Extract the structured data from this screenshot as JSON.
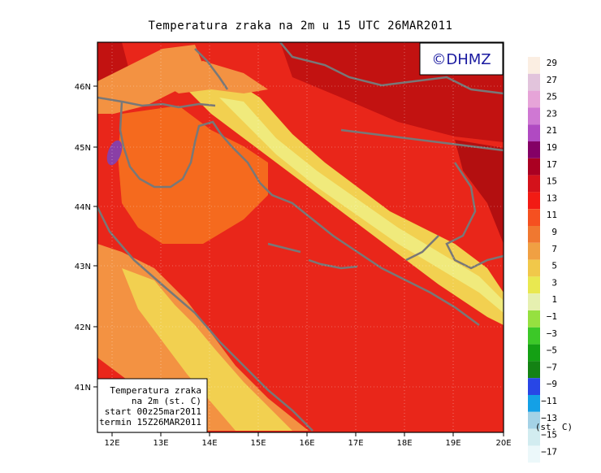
{
  "title": "Temperatura zraka na 2m u 15 UTC 26MAR2011",
  "logo_text": "©DHMZ",
  "lat_labels": [
    "46N",
    "45N",
    "44N",
    "43N",
    "42N",
    "41N"
  ],
  "lon_labels": [
    "12E",
    "13E",
    "14E",
    "15E",
    "16E",
    "17E",
    "18E",
    "19E",
    "20E"
  ],
  "info_box": {
    "line1": "Temperatura zraka",
    "line2": "na 2m (st. C)",
    "line3": "start 00z25mar2011",
    "line4": "termin 15Z26MAR2011"
  },
  "legend": {
    "unit": "(st. C)",
    "labels": [
      "29",
      "27",
      "25",
      "23",
      "21",
      "19",
      "17",
      "15",
      "13",
      "11",
      "9",
      "7",
      "5",
      "3",
      "1",
      "−1",
      "−3",
      "−5",
      "−7",
      "−9",
      "−11",
      "−13",
      "−15",
      "−17"
    ],
    "colors": [
      "#fbeee2",
      "#e2c4dc",
      "#e6a4d8",
      "#cf78d3",
      "#b04ac2",
      "#840066",
      "#aa0022",
      "#d4121b",
      "#f21b14",
      "#f55020",
      "#f07830",
      "#f0a043",
      "#f1c84a",
      "#e9e850",
      "#e6f0b0",
      "#96e040",
      "#3cc828",
      "#14a014",
      "#148214",
      "#2846e6",
      "#14a0e6",
      "#a4d2e6",
      "#d2ecf0",
      "#ecf8fa"
    ]
  },
  "colors": {
    "sea_red": "#e9261a",
    "dark_red": "#c21211",
    "orange": "#f56a1e",
    "light_orange": "#f39242",
    "yellow": "#f2d050",
    "pale_yellow": "#f0ea7c",
    "coast_gray": "#787878",
    "purple": "#8a3fa6"
  }
}
